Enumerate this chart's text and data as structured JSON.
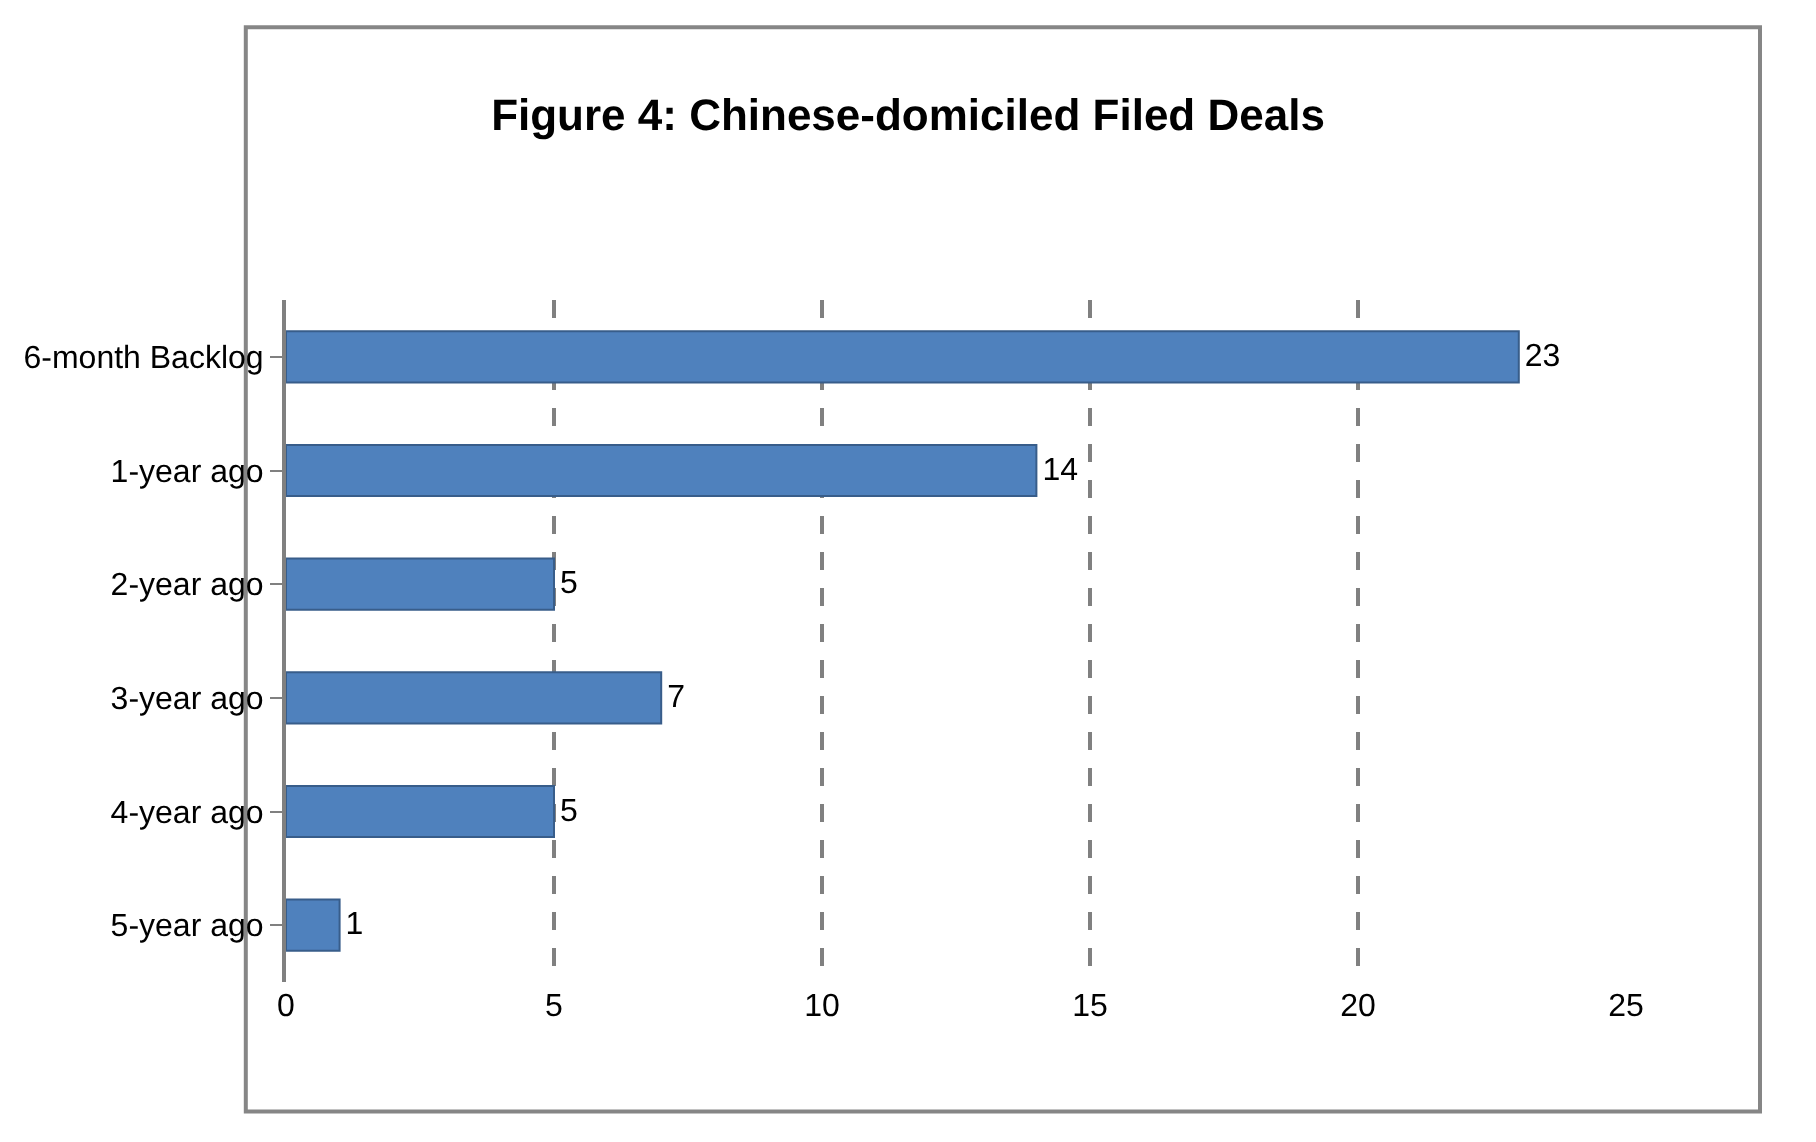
{
  "chart_data": {
    "type": "bar",
    "orientation": "horizontal",
    "title": "Figure 4: Chinese-domiciled Filed Deals",
    "categories": [
      "6-month Backlog",
      "1-year ago",
      "2-year ago",
      "3-year ago",
      "4-year ago",
      "5-year ago"
    ],
    "values": [
      23,
      14,
      5,
      7,
      5,
      1
    ],
    "color": "#4f81bd",
    "xlim": [
      0,
      25
    ],
    "xticks": [
      0,
      5,
      10,
      15,
      20,
      25
    ],
    "grid": "x",
    "line_style": "dashed",
    "data_labels": true
  }
}
